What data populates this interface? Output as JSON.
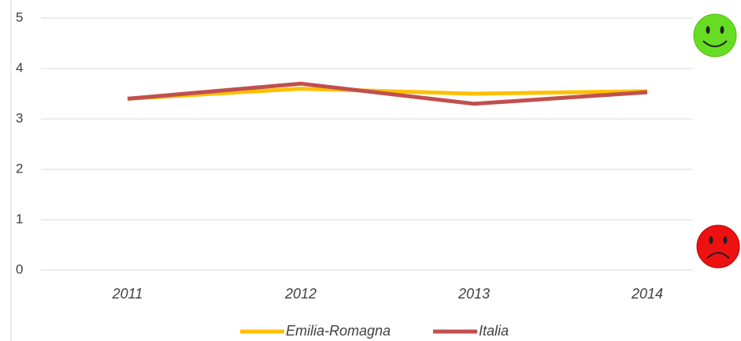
{
  "chart_data": {
    "type": "line",
    "categories": [
      "2011",
      "2012",
      "2013",
      "2014"
    ],
    "series": [
      {
        "name": "Emilia-Romagna",
        "color": "#ffc000",
        "values": [
          3.4,
          3.6,
          3.5,
          3.55
        ]
      },
      {
        "name": "Italia",
        "color": "#c0504d",
        "values": [
          3.4,
          3.7,
          3.3,
          3.53
        ]
      }
    ],
    "ylim": [
      0,
      5
    ],
    "yticks": [
      0,
      1,
      2,
      3,
      4,
      5
    ],
    "grid": true,
    "legend": "bottom"
  }
}
